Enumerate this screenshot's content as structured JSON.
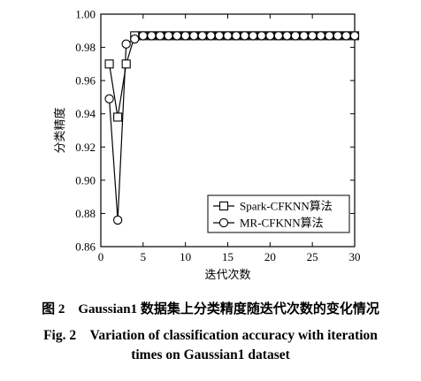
{
  "chart_data": {
    "type": "line",
    "xlabel": "迭代次数",
    "ylabel": "分类精度",
    "xlim": [
      0,
      30
    ],
    "ylim": [
      0.86,
      1.0
    ],
    "xticks": [
      0,
      5,
      10,
      15,
      20,
      25,
      30
    ],
    "yticks": [
      "0.86",
      "0.88",
      "0.90",
      "0.92",
      "0.94",
      "0.96",
      "0.98",
      "1.00"
    ],
    "legend_position": "bottom-right",
    "grid": false,
    "series": [
      {
        "name": "Spark-CFKNN算法",
        "marker": "square",
        "x": [
          1,
          2,
          3,
          4,
          5,
          6,
          7,
          8,
          9,
          10,
          11,
          12,
          13,
          14,
          15,
          16,
          17,
          18,
          19,
          20,
          21,
          22,
          23,
          24,
          25,
          26,
          27,
          28,
          29,
          30
        ],
        "values": [
          0.97,
          0.938,
          0.97,
          0.987,
          0.987,
          0.987,
          0.987,
          0.987,
          0.987,
          0.987,
          0.987,
          0.987,
          0.987,
          0.987,
          0.987,
          0.987,
          0.987,
          0.987,
          0.987,
          0.987,
          0.987,
          0.987,
          0.987,
          0.987,
          0.987,
          0.987,
          0.987,
          0.987,
          0.987,
          0.987
        ]
      },
      {
        "name": "MR-CFKNN算法",
        "marker": "circle",
        "x": [
          1,
          2,
          3,
          4,
          5,
          6,
          7,
          8,
          9,
          10,
          11,
          12,
          13,
          14,
          15,
          16,
          17,
          18,
          19,
          20,
          21,
          22,
          23,
          24,
          25,
          26,
          27,
          28,
          29,
          30
        ],
        "values": [
          0.949,
          0.876,
          0.982,
          0.985,
          0.987,
          0.987,
          0.987,
          0.987,
          0.987,
          0.987,
          0.987,
          0.987,
          0.987,
          0.987,
          0.987,
          0.987,
          0.987,
          0.987,
          0.987,
          0.987,
          0.987,
          0.987,
          0.987,
          0.987,
          0.987,
          0.987,
          0.987,
          0.987,
          0.987,
          0.987
        ]
      }
    ]
  },
  "caption": {
    "cn": "图 2　Gaussian1 数据集上分类精度随迭代次数的变化情况",
    "en_line1": "Fig. 2　Variation of classification accuracy with iteration",
    "en_line2": "times on Gaussian1 dataset"
  }
}
